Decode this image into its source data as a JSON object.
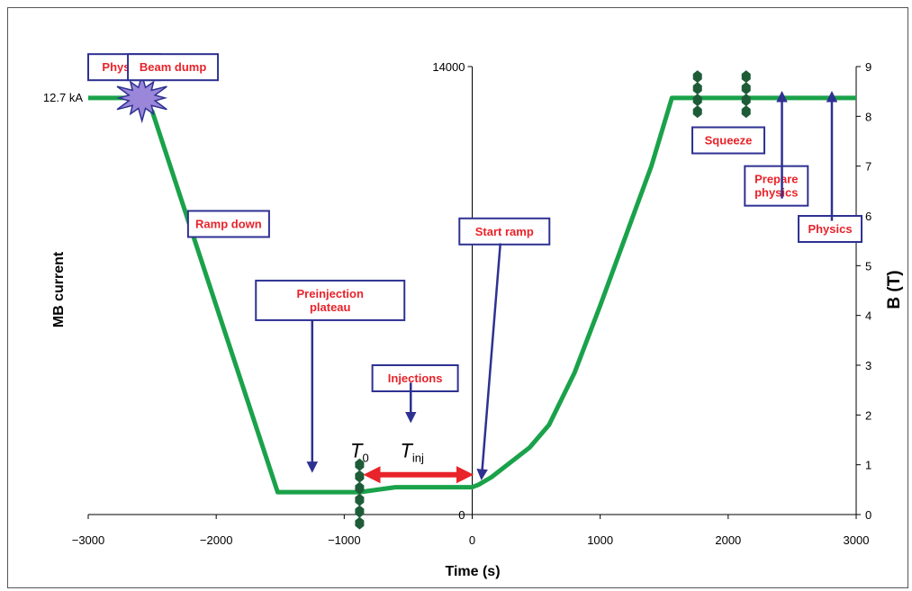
{
  "colors": {
    "curve": "#1aa24a",
    "annotation_text": "#e8232a",
    "annotation_border": "#2e3192",
    "arrow": "#2e3192",
    "tinj_arrow": "#e8232a",
    "marker": "#1e5c38",
    "star_fill": "#9b87d9",
    "star_stroke": "#2e3192"
  },
  "chart_data": {
    "type": "line",
    "xlabel": "Time (s)",
    "ylabel_left": "MB current",
    "ylabel_right": "B (T)",
    "xlim": [
      -3000,
      3000
    ],
    "x_ticks": [
      "−3000",
      "−2000",
      "−1000",
      "0",
      "1000",
      "2000",
      "3000"
    ],
    "x_tick_values": [
      -3000,
      -2000,
      -1000,
      0,
      1000,
      2000,
      3000
    ],
    "y_right_lim": [
      0,
      9
    ],
    "y_right_ticks": [
      0,
      1,
      2,
      3,
      4,
      5,
      6,
      7,
      8,
      9
    ],
    "y_left_lim": [
      0,
      14000
    ],
    "y_left_tick_labels": [
      "14000",
      "0"
    ],
    "y_left_tick_values": [
      14000,
      0
    ],
    "current_label": "12.7  kA",
    "current_label_value": 8.37,
    "series": [
      {
        "x": [
          -3000,
          -2600,
          -2500,
          -1520,
          -880,
          -600,
          0,
          50,
          150,
          300,
          450,
          600,
          800,
          1000,
          1200,
          1400,
          1560,
          3000
        ],
        "y": [
          8.37,
          8.37,
          8.1,
          0.45,
          0.45,
          0.55,
          0.55,
          0.6,
          0.75,
          1.05,
          1.35,
          1.8,
          2.85,
          4.2,
          5.6,
          7.0,
          8.37,
          8.37
        ]
      }
    ],
    "markers": [
      {
        "name": "T0",
        "x": -880,
        "y": [
          -0.2,
          1.0
        ]
      },
      {
        "name": "squeeze-start",
        "x": 1760,
        "y": [
          7.9,
          8.8
        ]
      },
      {
        "name": "squeeze-end",
        "x": 2140,
        "y": [
          7.9,
          8.8
        ]
      }
    ],
    "beam_dump_star": {
      "x": -2580,
      "y": 8.37
    },
    "tinj_span": {
      "x1": -840,
      "x2": 0,
      "y": 0.8
    },
    "t0_label": {
      "main": "T",
      "sub": "0",
      "x": -880,
      "y": 1.15
    },
    "tinj_label": {
      "main": "T",
      "sub": "inj",
      "x": -470,
      "y": 1.15
    },
    "annotations": [
      {
        "text": [
          "Physics"
        ],
        "x": -3000,
        "y": 9.25,
        "w": 80
      },
      {
        "text": [
          "Beam dump"
        ],
        "x": -2690,
        "y": 9.25,
        "w": 100
      },
      {
        "text": [
          "Ramp down"
        ],
        "x": -2220,
        "y": 6.1,
        "w": 90
      },
      {
        "text": [
          "Preinjection",
          "plateau"
        ],
        "x": -1690,
        "y": 4.7,
        "w": 165,
        "arrow": {
          "x": -1250,
          "y_from": 3.9,
          "y_to": 0.95
        }
      },
      {
        "text": [
          "Injections"
        ],
        "x": -780,
        "y": 3.0,
        "w": 95,
        "arrow": {
          "x": -480,
          "y_from": 2.65,
          "y_to": 1.95
        }
      },
      {
        "text": [
          "Start ramp"
        ],
        "x": -100,
        "y": 5.95,
        "w": 100,
        "arrow": {
          "x": 220,
          "x2": 75,
          "y_from": 5.45,
          "y_to": 0.8
        }
      },
      {
        "text": [
          "Squeeze"
        ],
        "x": 1720,
        "y": 7.78,
        "w": 80
      },
      {
        "text": [
          "Prepare",
          "physics"
        ],
        "x": 2130,
        "y": 7.0,
        "w": 70,
        "arrow": {
          "x": 2420,
          "y_from": 6.35,
          "y_to": 8.4
        }
      },
      {
        "text": [
          "Physics"
        ],
        "x": 2550,
        "y": 6.0,
        "w": 70,
        "arrow": {
          "x": 2810,
          "y_from": 5.9,
          "y_to": 8.4
        }
      }
    ]
  }
}
